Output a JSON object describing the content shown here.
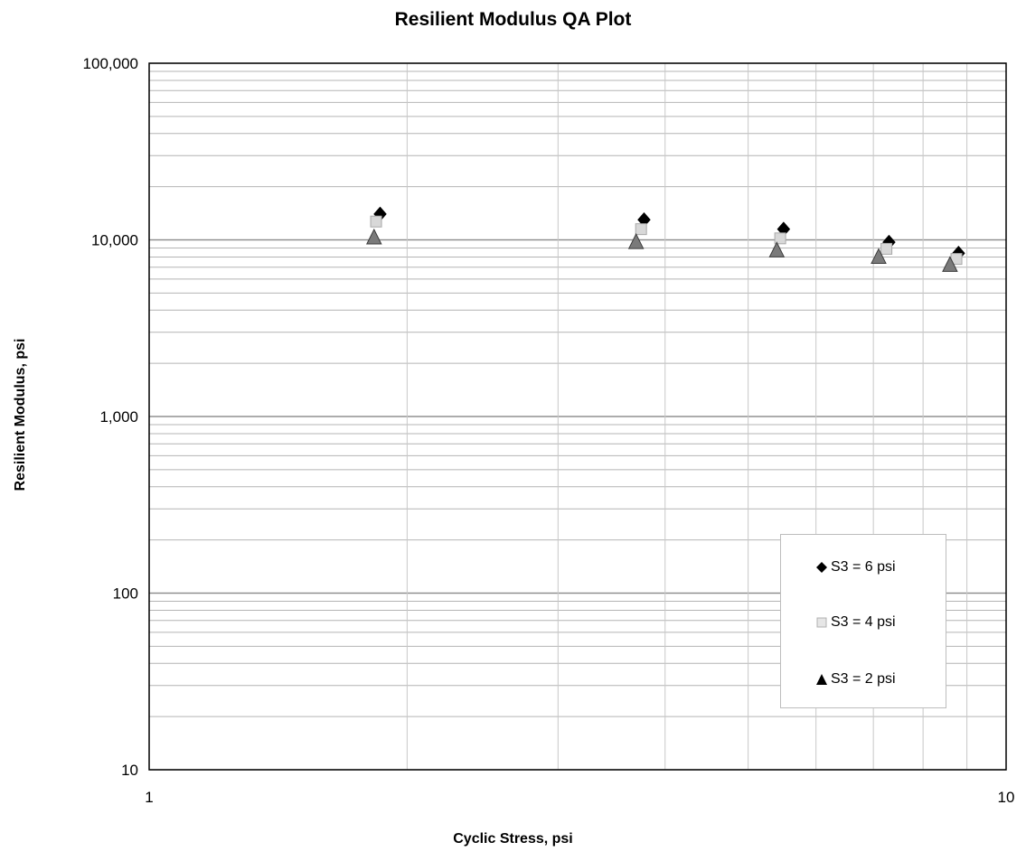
{
  "chart_data": {
    "type": "scatter",
    "title": "Resilient Modulus QA Plot",
    "xlabel": "Cyclic Stress,  psi",
    "ylabel": "Resilient Modulus,  psi",
    "x_scale": "log",
    "y_scale": "log",
    "xlim": [
      1,
      10
    ],
    "ylim": [
      10,
      100000
    ],
    "x_ticks": [
      "1",
      "10"
    ],
    "y_ticks": [
      "10",
      "100",
      "1,000",
      "10,000",
      "100,000"
    ],
    "grid": true,
    "legend_position": "bottom-right",
    "series": [
      {
        "name": "S3  = 6 psi",
        "marker": "diamond",
        "color": "#000000",
        "x": [
          1.86,
          3.78,
          5.5,
          7.3,
          8.8
        ],
        "y": [
          14000,
          13000,
          11500,
          9700,
          8400
        ]
      },
      {
        "name": "S3  = 4 psi",
        "marker": "square",
        "color": "#d8d8d8",
        "x": [
          1.84,
          3.75,
          5.45,
          7.25,
          8.75
        ],
        "y": [
          12700,
          11500,
          10200,
          8900,
          7800
        ]
      },
      {
        "name": "S3  = 2 psi",
        "marker": "triangle",
        "color": "#7a7a7a",
        "x": [
          1.83,
          3.7,
          5.4,
          7.1,
          8.6
        ],
        "y": [
          10300,
          9700,
          8700,
          8000,
          7200
        ]
      }
    ]
  }
}
